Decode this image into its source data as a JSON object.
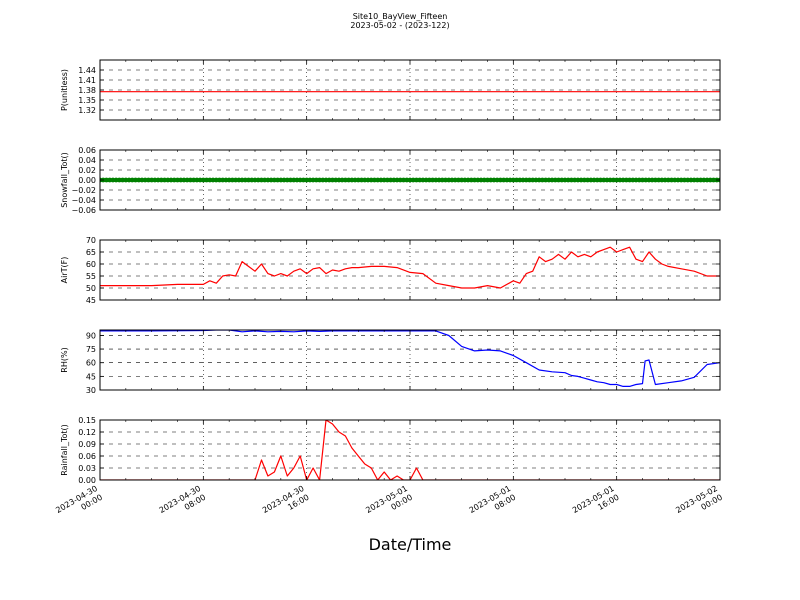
{
  "figure": {
    "title_line1": "Site10_BayView_Fifteen",
    "title_line2": "2023-05-02 - (2023-122)",
    "xlabel": "Date/Time"
  },
  "chart_data": [
    {
      "type": "line",
      "ylabel": "P(unitless)",
      "color": "#ff0000",
      "ylim": [
        1.29,
        1.47
      ],
      "yticks": [
        "1.44",
        "1.41",
        "1.38",
        "1.35",
        "1.32"
      ],
      "ytick_values": [
        1.44,
        1.41,
        1.38,
        1.35,
        1.32
      ],
      "series": [
        {
          "x": [
            0,
            48
          ],
          "y": [
            1.375,
            1.375
          ]
        }
      ]
    },
    {
      "type": "scatter",
      "ylabel": "Snowfall_Tot()",
      "color": "#008000",
      "ylim": [
        -0.06,
        0.06
      ],
      "yticks": [
        "0.06",
        "0.04",
        "0.02",
        "0.00",
        "−0.02",
        "−0.04",
        "−0.06"
      ],
      "ytick_values": [
        0.06,
        0.04,
        0.02,
        0.0,
        -0.02,
        -0.04,
        -0.06
      ],
      "series": [
        {
          "x_start": 0,
          "x_end": 48,
          "x_step": 0.25,
          "y": 0.0
        }
      ]
    },
    {
      "type": "line",
      "ylabel": "AirT(F)",
      "color": "#ff0000",
      "ylim": [
        45,
        70
      ],
      "yticks": [
        "70",
        "65",
        "60",
        "55",
        "50",
        "45"
      ],
      "ytick_values": [
        70,
        65,
        60,
        55,
        50,
        45
      ],
      "series": [
        {
          "x": [
            0,
            2,
            4,
            6,
            8,
            8.5,
            9,
            9.5,
            10,
            10.5,
            11,
            11.5,
            12,
            12.5,
            13,
            13.5,
            14,
            14.5,
            15,
            15.5,
            16,
            16.5,
            17,
            17.5,
            18,
            18.5,
            19,
            19.5,
            20,
            21,
            22,
            23,
            24,
            25,
            26,
            27,
            28,
            29,
            30,
            31,
            32,
            32.5,
            33,
            33.5,
            34,
            34.5,
            35,
            35.5,
            36,
            36.5,
            37,
            37.5,
            38,
            38.5,
            39,
            39.5,
            40,
            40.5,
            41,
            41.5,
            42,
            42.5,
            43,
            43.5,
            44,
            45,
            46,
            47,
            48
          ],
          "y": [
            51,
            51,
            51,
            51.5,
            51.5,
            53,
            52,
            55,
            55.5,
            55,
            61,
            59,
            57,
            60,
            56,
            55,
            56,
            55,
            57,
            58,
            56,
            58,
            58.5,
            56,
            57.5,
            57,
            58,
            58.5,
            58.5,
            59,
            59,
            58.5,
            56.5,
            56,
            52,
            51,
            50,
            50,
            51,
            50,
            53,
            52,
            56,
            57,
            63,
            61,
            62,
            64,
            62,
            65,
            63,
            64,
            63,
            65,
            66,
            67,
            65,
            66,
            67,
            62,
            61,
            65,
            62,
            60,
            59,
            58,
            57,
            55,
            55
          ]
        }
      ]
    },
    {
      "type": "line",
      "ylabel": "RH(%)",
      "color": "#0000ff",
      "ylim": [
        30,
        96
      ],
      "yticks": [
        "90",
        "75",
        "60",
        "45",
        "30"
      ],
      "ytick_values": [
        90,
        75,
        60,
        45,
        30
      ],
      "series": [
        {
          "x": [
            0,
            4,
            8,
            9,
            10,
            11,
            12,
            13,
            14,
            15,
            16,
            17,
            18,
            20,
            22,
            24,
            26,
            27,
            28,
            29,
            30,
            31,
            32,
            33,
            34,
            35,
            36,
            36.5,
            37,
            37.5,
            38,
            38.5,
            39,
            39.5,
            40,
            40.5,
            41,
            41.5,
            42,
            42.2,
            42.5,
            43,
            44,
            45,
            46,
            47,
            48
          ],
          "y": [
            95,
            95,
            95.5,
            96,
            96,
            94,
            95,
            94,
            94.5,
            94,
            95,
            94.5,
            95,
            95,
            95,
            95,
            95,
            90,
            78,
            73,
            74,
            73,
            68,
            60,
            52,
            50,
            49,
            46,
            45,
            43,
            41,
            39,
            38,
            36,
            36,
            34,
            34,
            36,
            37,
            62,
            63,
            36,
            38,
            40,
            44,
            58,
            60
          ]
        }
      ]
    },
    {
      "type": "line",
      "ylabel": "Rainfall_Tot()",
      "color": "#ff0000",
      "ylim": [
        0,
        0.15
      ],
      "yticks": [
        "0.15",
        "0.12",
        "0.09",
        "0.06",
        "0.03",
        "0.00"
      ],
      "ytick_values": [
        0.15,
        0.12,
        0.09,
        0.06,
        0.03,
        0.0
      ],
      "series": [
        {
          "x": [
            0,
            12,
            12.5,
            13,
            13.5,
            14,
            14.5,
            15,
            15.5,
            16,
            16.5,
            17,
            17.5,
            18,
            18.5,
            19,
            19.5,
            20,
            20.5,
            21,
            21.5,
            22,
            22.5,
            23,
            23.5,
            24,
            24.5,
            25,
            25.5,
            26,
            26.5,
            27,
            48
          ],
          "y": [
            0,
            0,
            0.05,
            0.01,
            0.02,
            0.06,
            0.01,
            0.03,
            0.06,
            0.0,
            0.03,
            0.0,
            0.15,
            0.14,
            0.12,
            0.11,
            0.08,
            0.06,
            0.04,
            0.03,
            0.0,
            0.02,
            0.0,
            0.01,
            0.0,
            0.0,
            0.03,
            0.0,
            0.0,
            0.0,
            0.0,
            0.0,
            0.0
          ]
        }
      ]
    }
  ],
  "x_axis": {
    "xlim": [
      0,
      48
    ],
    "tick_positions": [
      0,
      8,
      16,
      24,
      32,
      40,
      48
    ],
    "minor_ticks": 3,
    "tick_labels": [
      [
        "2023-04-30",
        "00:00"
      ],
      [
        "2023-04-30",
        "08:00"
      ],
      [
        "2023-04-30",
        "16:00"
      ],
      [
        "2023-05-01",
        "00:00"
      ],
      [
        "2023-05-01",
        "08:00"
      ],
      [
        "2023-05-01",
        "16:00"
      ],
      [
        "2023-05-02",
        "00:00"
      ]
    ]
  }
}
